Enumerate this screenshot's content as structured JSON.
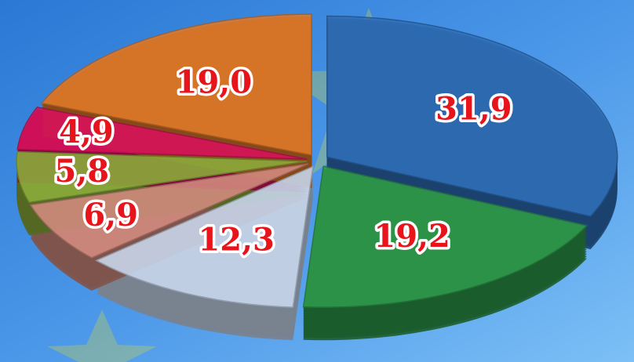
{
  "chart_data": {
    "type": "pie",
    "categories": [
      null,
      null,
      null,
      null,
      null,
      null,
      null
    ],
    "values": [
      31.9,
      19.2,
      12.3,
      6.9,
      5.8,
      4.9,
      19.0
    ],
    "value_labels": [
      "31,9",
      "19,2",
      "12,3",
      "6,9",
      "5,8",
      "4,9",
      "19,0"
    ],
    "colors": [
      "#2f6fb8",
      "#2f9a4c",
      "#c9d9ee",
      "#d48c80",
      "#8cae3c",
      "#d8115c",
      "#e07a2a"
    ]
  }
}
